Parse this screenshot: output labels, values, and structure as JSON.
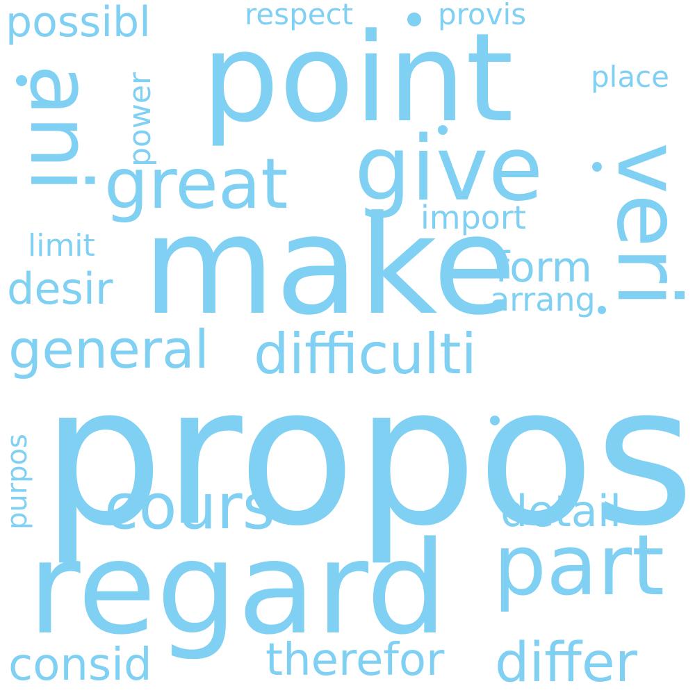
{
  "palette": {
    "word_color": "#7fd0f2",
    "background": "#ffffff"
  },
  "words": [
    {
      "key": "propos",
      "text": "propos"
    },
    {
      "key": "regard",
      "text": "regard"
    },
    {
      "key": "make",
      "text": "make"
    },
    {
      "key": "point",
      "text": "point"
    },
    {
      "key": "give",
      "text": "give"
    },
    {
      "key": "ani",
      "text": "ani"
    },
    {
      "key": "veri",
      "text": "veri"
    },
    {
      "key": "part",
      "text": "part"
    },
    {
      "key": "great",
      "text": "great"
    },
    {
      "key": "cours",
      "text": "cours"
    },
    {
      "key": "difficulti",
      "text": "difficulti"
    },
    {
      "key": "general",
      "text": "general"
    },
    {
      "key": "differ",
      "text": "differ"
    },
    {
      "key": "therefor",
      "text": "therefor"
    },
    {
      "key": "consid",
      "text": "consid"
    },
    {
      "key": "detail",
      "text": "detail"
    },
    {
      "key": "desir",
      "text": "desir"
    },
    {
      "key": "form",
      "text": "form"
    },
    {
      "key": "possibl",
      "text": "possibl"
    },
    {
      "key": "import",
      "text": "import"
    },
    {
      "key": "arrang",
      "text": "arrang"
    },
    {
      "key": "limit",
      "text": "limit"
    },
    {
      "key": "place",
      "text": "place"
    },
    {
      "key": "respect",
      "text": "respect"
    },
    {
      "key": "provis",
      "text": "provis"
    },
    {
      "key": "power",
      "text": "power"
    },
    {
      "key": "purpos",
      "text": "purpos"
    }
  ]
}
